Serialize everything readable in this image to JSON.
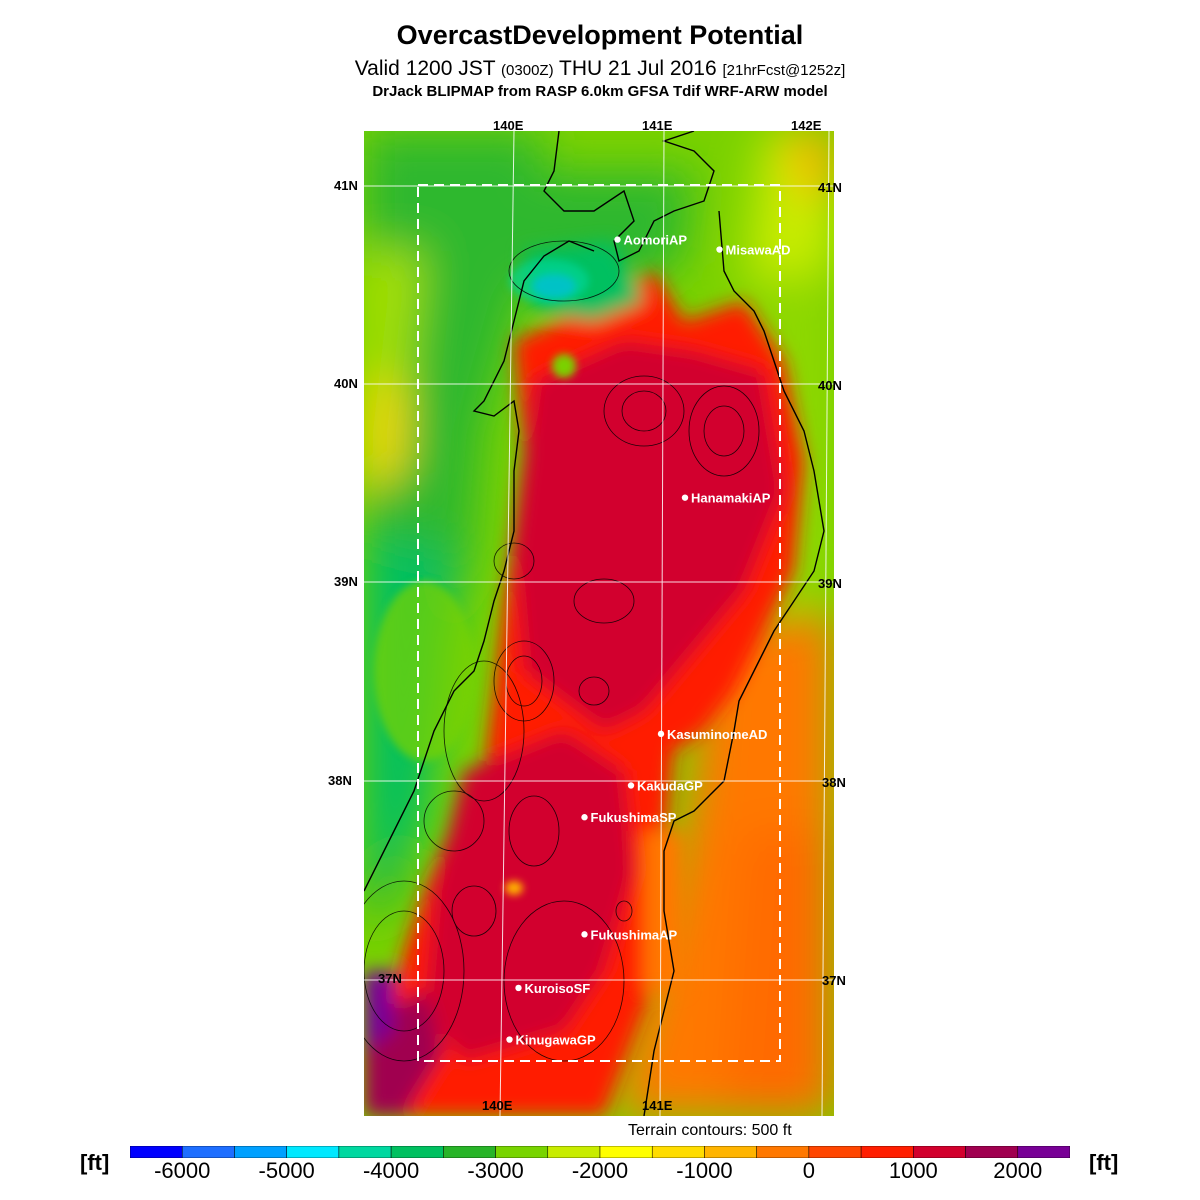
{
  "header": {
    "title": "OvercastDevelopment Potential",
    "valid_prefix": "Valid 1200 JST",
    "valid_utc": "(0300Z)",
    "valid_date": "THU 21 Jul 2016",
    "forecast_tag": "[21hrFcst@1252z]",
    "model_line": "DrJack BLIPMAP from RASP 6.0km GFSA Tdif WRF-ARW model"
  },
  "map": {
    "lon_labels_top": [
      "140E",
      "141E",
      "142E"
    ],
    "lon_labels_bottom": [
      "140E",
      "141E"
    ],
    "lat_labels": [
      "41N",
      "40N",
      "39N",
      "38N",
      "37N"
    ],
    "sites": [
      {
        "name": "AomoriAP",
        "lon": 140.69,
        "lat": 40.73
      },
      {
        "name": "MisawaAD",
        "lon": 141.37,
        "lat": 40.68
      },
      {
        "name": "HanamakiAP",
        "lon": 141.14,
        "lat": 39.43
      },
      {
        "name": "KasuminomeAD",
        "lon": 140.98,
        "lat": 38.24
      },
      {
        "name": "KakudaGP",
        "lon": 140.78,
        "lat": 37.98
      },
      {
        "name": "FukushimaSP",
        "lon": 140.47,
        "lat": 37.82
      },
      {
        "name": "FukushimaAP",
        "lon": 140.47,
        "lat": 37.23
      },
      {
        "name": "KuroisoSF",
        "lon": 140.03,
        "lat": 36.96
      },
      {
        "name": "KinugawaGP",
        "lon": 139.97,
        "lat": 36.7
      }
    ],
    "terrain_note": "Terrain contours: 500 ft"
  },
  "colorbar": {
    "unit": "[ft]",
    "colors": [
      "#0000ff",
      "#1e6eff",
      "#00a0ff",
      "#00e8ff",
      "#00d8a0",
      "#00c060",
      "#28b428",
      "#78d400",
      "#c8ec00",
      "#ffff00",
      "#ffdc00",
      "#ffb400",
      "#ff7800",
      "#ff4600",
      "#ff1e00",
      "#d2002d",
      "#a00050",
      "#780096"
    ],
    "labels": [
      "-6000",
      "-5000",
      "-4000",
      "-3000",
      "-2000",
      "-1000",
      "0",
      "1000",
      "2000"
    ],
    "label_positions": [
      1,
      3,
      5,
      7,
      9,
      11,
      13,
      15,
      17
    ]
  }
}
